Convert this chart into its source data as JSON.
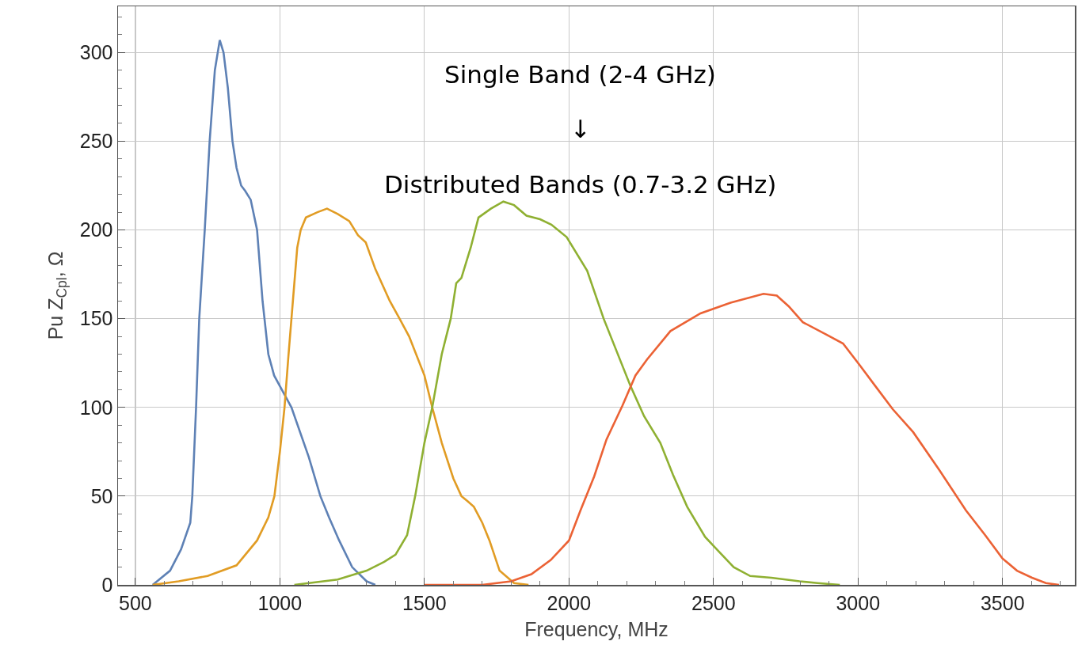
{
  "chart_data": {
    "type": "line",
    "xlabel": "Frequency, MHz",
    "ylabel": "Pu Z$_{Cpl}$, Ω",
    "annotations": [
      "Single Band (2-4 GHz)",
      "↓",
      "Distributed Bands (0.7-3.2 GHz)"
    ],
    "xlim": [
      440,
      3750
    ],
    "ylim": [
      0,
      326
    ],
    "xticks": [
      500,
      1000,
      1500,
      2000,
      2500,
      3000,
      3500
    ],
    "yticks": [
      0,
      50,
      100,
      150,
      200,
      250,
      300
    ],
    "grid": true,
    "line_style": "solid",
    "marker": "none",
    "series": [
      {
        "color": "#5e81b5",
        "x": [
          560,
          620,
          658,
          690,
          697,
          710,
          721,
          740,
          757,
          775,
          792,
          805,
          820,
          836,
          850,
          866,
          880,
          899,
          921,
          940,
          960,
          980,
          1000,
          1040,
          1100,
          1140,
          1170,
          1205,
          1250,
          1300,
          1330
        ],
        "values": [
          0,
          8,
          20,
          35,
          50,
          100,
          150,
          200,
          250,
          290,
          307,
          300,
          280,
          250,
          235,
          225,
          222,
          217,
          200,
          160,
          130,
          118,
          112,
          100,
          72,
          50,
          38,
          25,
          10,
          2,
          0
        ]
      },
      {
        "color": "#e19c24",
        "x": [
          560,
          650,
          750,
          850,
          921,
          960,
          981,
          1000,
          1016,
          1030,
          1045,
          1060,
          1072,
          1090,
          1130,
          1163,
          1200,
          1240,
          1270,
          1297,
          1330,
          1380,
          1414,
          1447,
          1500,
          1527,
          1560,
          1600,
          1628,
          1650,
          1671,
          1700,
          1725,
          1760,
          1810,
          1860
        ],
        "values": [
          0,
          2,
          5,
          11,
          25,
          38,
          50,
          75,
          100,
          130,
          160,
          190,
          200,
          207,
          210,
          212,
          209,
          205,
          197,
          193,
          178,
          160,
          150,
          140,
          118,
          100,
          80,
          60,
          50,
          47,
          44,
          35,
          25,
          8,
          1,
          0
        ]
      },
      {
        "color": "#8fb032",
        "x": [
          1050,
          1200,
          1300,
          1361,
          1400,
          1440,
          1468,
          1500,
          1527,
          1560,
          1591,
          1610,
          1628,
          1660,
          1687,
          1730,
          1773,
          1810,
          1853,
          1900,
          1939,
          1992,
          2063,
          2120,
          2213,
          2260,
          2316,
          2360,
          2409,
          2471,
          2523,
          2570,
          2627,
          2700,
          2798,
          2860,
          2937
        ],
        "values": [
          0,
          3,
          8,
          13,
          17,
          28,
          50,
          80,
          100,
          130,
          150,
          170,
          173,
          190,
          207,
          212,
          216,
          214,
          208,
          206,
          203,
          196,
          177,
          150,
          112,
          95,
          80,
          62,
          44,
          27,
          18,
          10,
          5,
          4,
          2,
          1,
          0
        ]
      },
      {
        "color": "#eb6235",
        "x": [
          1500,
          1700,
          1800,
          1870,
          1937,
          2000,
          2040,
          2087,
          2130,
          2185,
          2230,
          2270,
          2351,
          2455,
          2559,
          2673,
          2719,
          2760,
          2809,
          2891,
          2948,
          3005,
          3060,
          3120,
          3191,
          3280,
          3373,
          3440,
          3499,
          3550,
          3602,
          3650,
          3695
        ],
        "values": [
          0,
          0,
          2,
          6,
          14,
          25,
          42,
          61,
          82,
          101,
          118,
          127,
          143,
          153,
          159,
          164,
          163,
          157,
          148,
          141,
          136,
          124,
          112,
          99,
          86,
          65,
          42,
          28,
          15,
          8,
          4,
          1,
          0
        ]
      }
    ]
  }
}
